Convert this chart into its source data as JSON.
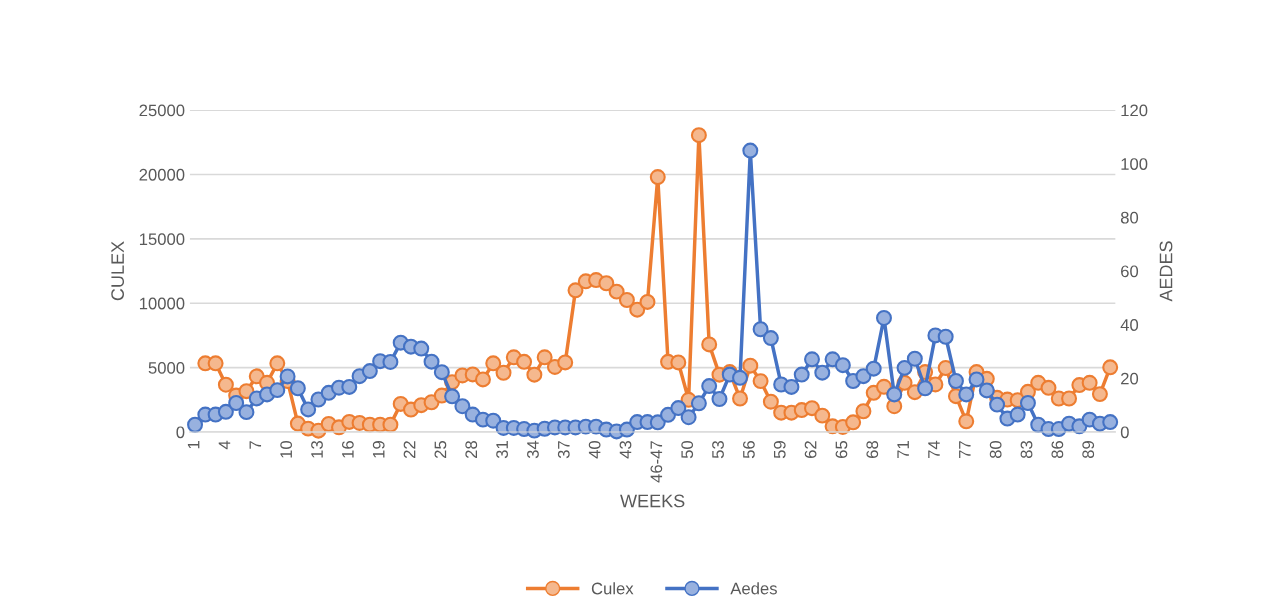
{
  "chart_data": {
    "type": "line",
    "xlabel": "WEEKS",
    "ylabel": "CULEX",
    "y2label": "AEDES",
    "categories": [
      "1",
      null,
      null,
      "4",
      null,
      null,
      "7",
      null,
      null,
      "10",
      null,
      null,
      "13",
      null,
      null,
      "16",
      null,
      null,
      "19",
      null,
      null,
      "22",
      null,
      null,
      "25",
      null,
      null,
      "28",
      null,
      null,
      "31",
      null,
      null,
      "34",
      null,
      null,
      "37",
      null,
      null,
      "40",
      null,
      null,
      "43",
      null,
      null,
      "46-47",
      null,
      null,
      "50",
      null,
      null,
      "53",
      null,
      null,
      "56",
      null,
      null,
      "59",
      null,
      null,
      "62",
      null,
      null,
      "65",
      null,
      null,
      "68",
      null,
      null,
      "71",
      null,
      null,
      "74",
      null,
      null,
      "77",
      null,
      null,
      "80",
      null,
      null,
      "83",
      null,
      null,
      "86",
      null,
      null,
      "89",
      null,
      null
    ],
    "series": [
      {
        "name": "Culex",
        "color": "#ed7d31",
        "values": [
          null,
          5330,
          5330,
          3670,
          2830,
          3170,
          4320,
          3820,
          5330,
          3950,
          650,
          260,
          100,
          620,
          360,
          780,
          700,
          570,
          570,
          570,
          2180,
          1740,
          2080,
          2310,
          2830,
          3870,
          4390,
          4470,
          4080,
          5330,
          4600,
          5800,
          5450,
          4450,
          5800,
          5050,
          5400,
          11000,
          11700,
          11800,
          11550,
          10900,
          10250,
          9500,
          10100,
          19800,
          5450,
          5400,
          2500,
          23050,
          6800,
          4450,
          4650,
          2600,
          5150,
          3950,
          2350,
          1500,
          1500,
          1700,
          1850,
          1270,
          440,
          390,
          750,
          1610,
          3040,
          3510,
          2000,
          3820,
          3090,
          4650,
          3690,
          4970,
          2780,
          830,
          4650,
          4130,
          2650,
          2520,
          2470,
          3120,
          3820,
          3430,
          2600,
          2600,
          3640,
          3820,
          2940,
          5020
        ]
      },
      {
        "name": "Aedes",
        "color": "#4472c4",
        "axis": "y2",
        "values": [
          2.7,
          6.5,
          6.5,
          7.5,
          10.8,
          7.4,
          12.5,
          14.0,
          15.6,
          20.7,
          16.3,
          8.4,
          12.1,
          14.6,
          16.5,
          16.8,
          20.8,
          22.7,
          26.4,
          26.1,
          33.3,
          31.8,
          31.1,
          26.2,
          22.3,
          13.3,
          9.6,
          6.5,
          4.6,
          4.2,
          1.5,
          1.5,
          1.1,
          0.5,
          1.2,
          1.7,
          1.7,
          1.7,
          2.0,
          2.0,
          0.9,
          0.2,
          0.9,
          3.7,
          3.7,
          3.6,
          6.4,
          8.9,
          5.5,
          10.7,
          17.1,
          12.3,
          21.4,
          20.2,
          104.9,
          38.3,
          35.0,
          17.7,
          16.8,
          21.4,
          27.1,
          22.1,
          27.1,
          24.9,
          19.0,
          20.8,
          23.6,
          42.5,
          14.0,
          23.9,
          27.3,
          16.3,
          36.0,
          35.5,
          19.0,
          14.0,
          19.6,
          15.5,
          10.2,
          5.0,
          6.5,
          10.8,
          2.7,
          1.1,
          1.1,
          3.1,
          2.1,
          4.6,
          3.1,
          3.7
        ]
      }
    ],
    "ylim": [
      0,
      25000
    ],
    "yticks": [
      0,
      5000,
      10000,
      15000,
      20000,
      25000
    ],
    "y2lim": [
      0,
      120
    ],
    "y2ticks": [
      0,
      20,
      40,
      60,
      80,
      100,
      120
    ],
    "grid": "y",
    "legend": "bottom",
    "marker": "circle",
    "line_style": "solid"
  }
}
